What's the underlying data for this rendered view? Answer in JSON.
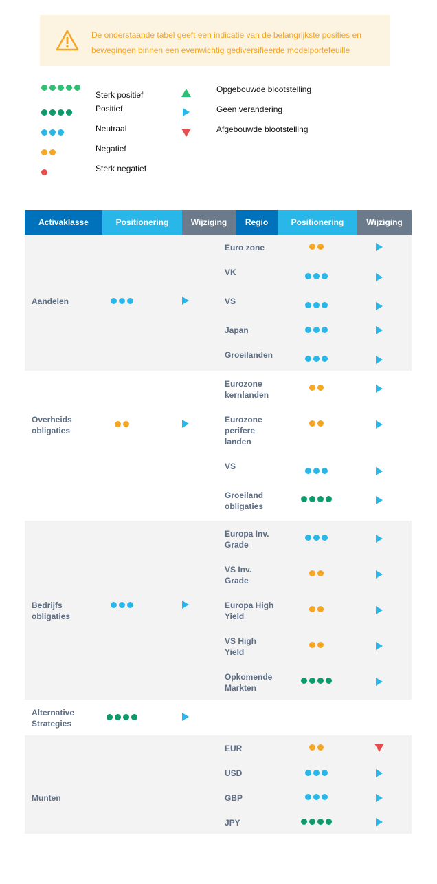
{
  "notice": {
    "icon": "warning-triangle-icon",
    "text": "De onderstaande tabel geeft een indicatie van de belangrijkste posities en bewegingen binnen een evenwichtig gediversifieerde modelportefeuille"
  },
  "legend": {
    "ratings": [
      {
        "label": "Sterk positief",
        "dots": 5,
        "color": "#2ebf73"
      },
      {
        "label": "Positief",
        "dots": 4,
        "color": "#0e9a6c"
      },
      {
        "label": "Neutraal",
        "dots": 3,
        "color": "#29b6e8"
      },
      {
        "label": "Negatief",
        "dots": 2,
        "color": "#f5a623"
      },
      {
        "label": "Sterk negatief",
        "dots": 1,
        "color": "#e84c4c"
      }
    ],
    "changes": [
      {
        "label": "Opgebouwde blootstelling",
        "icon": "triangle-up-icon"
      },
      {
        "label": "Geen verandering",
        "icon": "triangle-right-icon"
      },
      {
        "label": "Afgebouwde blootstelling",
        "icon": "triangle-down-icon"
      }
    ]
  },
  "colors": {
    "header_dark": "#0072bc",
    "header_light": "#29b6e8",
    "header_grey": "#6b7b8c",
    "band": "#f3f3f3",
    "text": "#5e6e82"
  },
  "table": {
    "headers": {
      "asset_class": "Activaklasse",
      "positioning_left": "Positionering",
      "change_left": "Wijziging",
      "region": "Regio",
      "positioning_right": "Positionering",
      "change_right": "Wijziging"
    },
    "groups": [
      {
        "asset": "Aandelen",
        "positioning": 3,
        "change": "none",
        "regions": [
          {
            "name": "Euro zone",
            "positioning": 2,
            "change": "none"
          },
          {
            "name": "VK",
            "positioning": 3,
            "change": "none"
          },
          {
            "name": "VS",
            "positioning": 3,
            "change": "none"
          },
          {
            "name": "Japan",
            "positioning": 3,
            "change": "none"
          },
          {
            "name": "Groeilanden",
            "positioning": 3,
            "change": "none"
          }
        ]
      },
      {
        "asset": "Overheids obligaties",
        "positioning": 2,
        "change": "none",
        "regions": [
          {
            "name": "Eurozone kernlanden",
            "positioning": 2,
            "change": "none"
          },
          {
            "name": "Eurozone perifere landen",
            "positioning": 2,
            "change": "none"
          },
          {
            "name": "VS",
            "positioning": 3,
            "change": "none"
          },
          {
            "name": "Groeiland obligaties",
            "positioning": 4,
            "change": "none"
          }
        ]
      },
      {
        "asset": "Bedrijfs obligaties",
        "positioning": 3,
        "change": "none",
        "regions": [
          {
            "name": "Europa Inv. Grade",
            "positioning": 3,
            "change": "none"
          },
          {
            "name": "VS Inv. Grade",
            "positioning": 2,
            "change": "none"
          },
          {
            "name": "Europa High Yield",
            "positioning": 2,
            "change": "none"
          },
          {
            "name": "VS High Yield",
            "positioning": 2,
            "change": "none"
          },
          {
            "name": "Opkomende Markten",
            "positioning": 4,
            "change": "none"
          }
        ]
      },
      {
        "asset": "Alternative Strategies",
        "positioning": 4,
        "change": "none",
        "regions": []
      },
      {
        "asset": "Munten",
        "positioning": 0,
        "change": "",
        "regions": [
          {
            "name": "EUR",
            "positioning": 2,
            "change": "down"
          },
          {
            "name": "USD",
            "positioning": 3,
            "change": "none"
          },
          {
            "name": "GBP",
            "positioning": 3,
            "change": "none"
          },
          {
            "name": "JPY",
            "positioning": 4,
            "change": "none"
          }
        ]
      }
    ]
  }
}
